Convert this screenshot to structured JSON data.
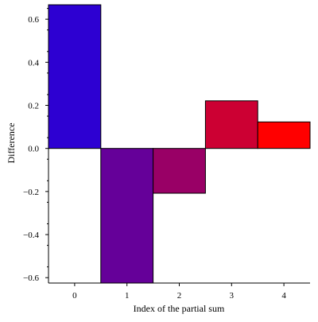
{
  "chart_data": {
    "type": "bar",
    "title": "",
    "xlabel": "Index of the partial sum",
    "ylabel": "Difference",
    "categories": [
      "0",
      "1",
      "2",
      "3",
      "4"
    ],
    "values": [
      0.667,
      -0.625,
      -0.208,
      0.221,
      0.123
    ],
    "colors": [
      "#2d00d2",
      "#650099",
      "#990066",
      "#cc0033",
      "#ff0000"
    ],
    "xlim": [
      -0.5,
      4.5
    ],
    "ylim": [
      -0.625,
      0.667
    ],
    "yticks": [
      -0.6,
      -0.4,
      -0.2,
      0.0,
      0.2,
      0.4,
      0.6
    ],
    "ytick_labels": [
      "−0.6",
      "−0.4",
      "−0.2",
      "0.0",
      "0.2",
      "0.4",
      "0.6"
    ],
    "xtick_labels": [
      "0",
      "1",
      "2",
      "3",
      "4"
    ],
    "grid": false,
    "legend": "none"
  }
}
